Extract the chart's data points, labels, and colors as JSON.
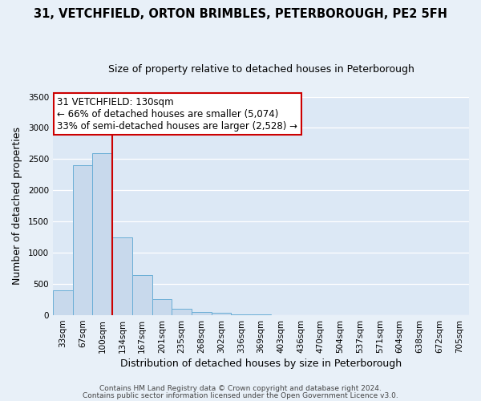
{
  "title1": "31, VETCHFIELD, ORTON BRIMBLES, PETERBOROUGH, PE2 5FH",
  "title2": "Size of property relative to detached houses in Peterborough",
  "xlabel": "Distribution of detached houses by size in Peterborough",
  "ylabel": "Number of detached properties",
  "bar_categories": [
    "33sqm",
    "67sqm",
    "100sqm",
    "134sqm",
    "167sqm",
    "201sqm",
    "235sqm",
    "268sqm",
    "302sqm",
    "336sqm",
    "369sqm",
    "403sqm",
    "436sqm",
    "470sqm",
    "504sqm",
    "537sqm",
    "571sqm",
    "604sqm",
    "638sqm",
    "672sqm",
    "705sqm"
  ],
  "bar_values": [
    400,
    2400,
    2600,
    1250,
    640,
    260,
    110,
    55,
    40,
    15,
    10,
    0,
    0,
    0,
    0,
    0,
    0,
    0,
    0,
    0,
    0
  ],
  "bar_color": "#c8d9ec",
  "bar_edgecolor": "#6aaed6",
  "vline_color": "#cc0000",
  "ylim": [
    0,
    3500
  ],
  "yticks": [
    0,
    500,
    1000,
    1500,
    2000,
    2500,
    3000,
    3500
  ],
  "annotation_title": "31 VETCHFIELD: 130sqm",
  "annotation_line1": "← 66% of detached houses are smaller (5,074)",
  "annotation_line2": "33% of semi-detached houses are larger (2,528) →",
  "annotation_box_facecolor": "#ffffff",
  "annotation_box_edgecolor": "#cc0000",
  "footer1": "Contains HM Land Registry data © Crown copyright and database right 2024.",
  "footer2": "Contains public sector information licensed under the Open Government Licence v3.0.",
  "fig_bg_color": "#e8f0f8",
  "plot_bg_color": "#dce8f5",
  "grid_color": "#ffffff",
  "title1_fontsize": 10.5,
  "title2_fontsize": 9,
  "axis_label_fontsize": 9,
  "tick_fontsize": 7.5,
  "annotation_fontsize": 8.5,
  "footer_fontsize": 6.5
}
